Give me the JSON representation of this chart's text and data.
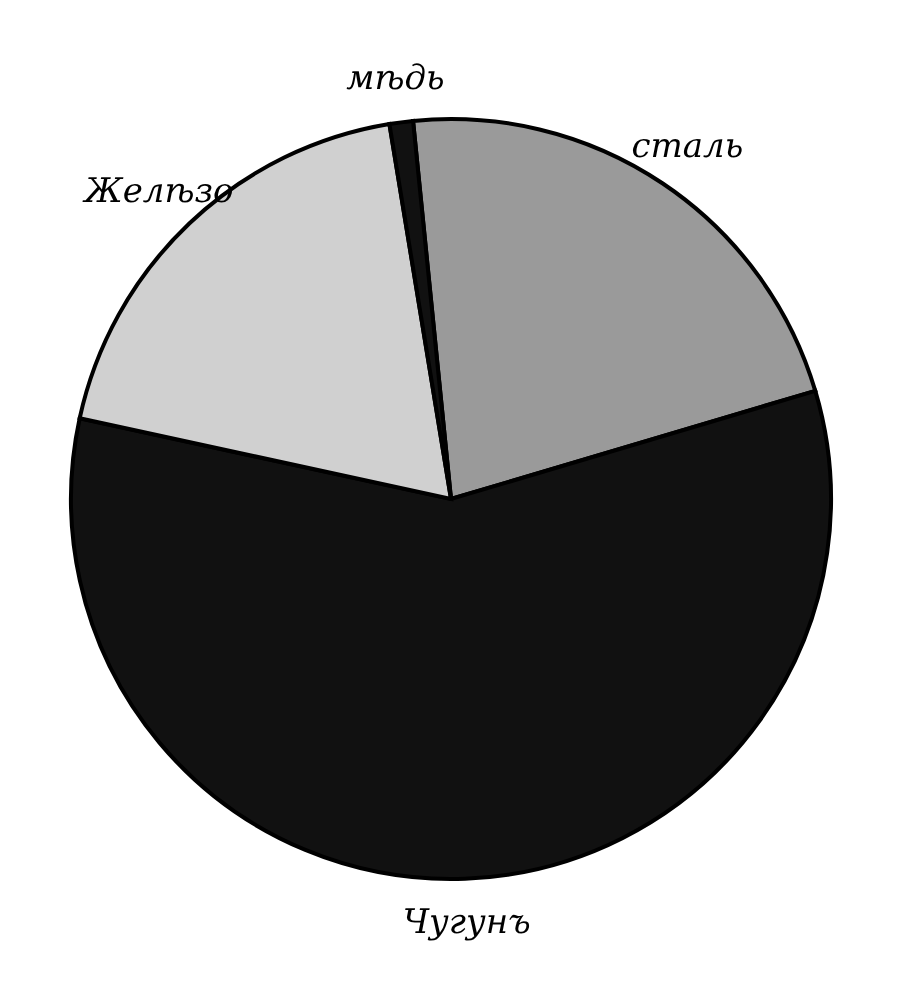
{
  "chart_data": {
    "type": "pie",
    "categories": [
      "сталь",
      "Чугунъ",
      "Желѣзо",
      "мѣдь"
    ],
    "values": [
      22,
      58,
      19,
      1
    ],
    "colors": [
      "#9a9a9a",
      "#111111",
      "#d0d0d0",
      "#111111"
    ],
    "legend": false
  }
}
